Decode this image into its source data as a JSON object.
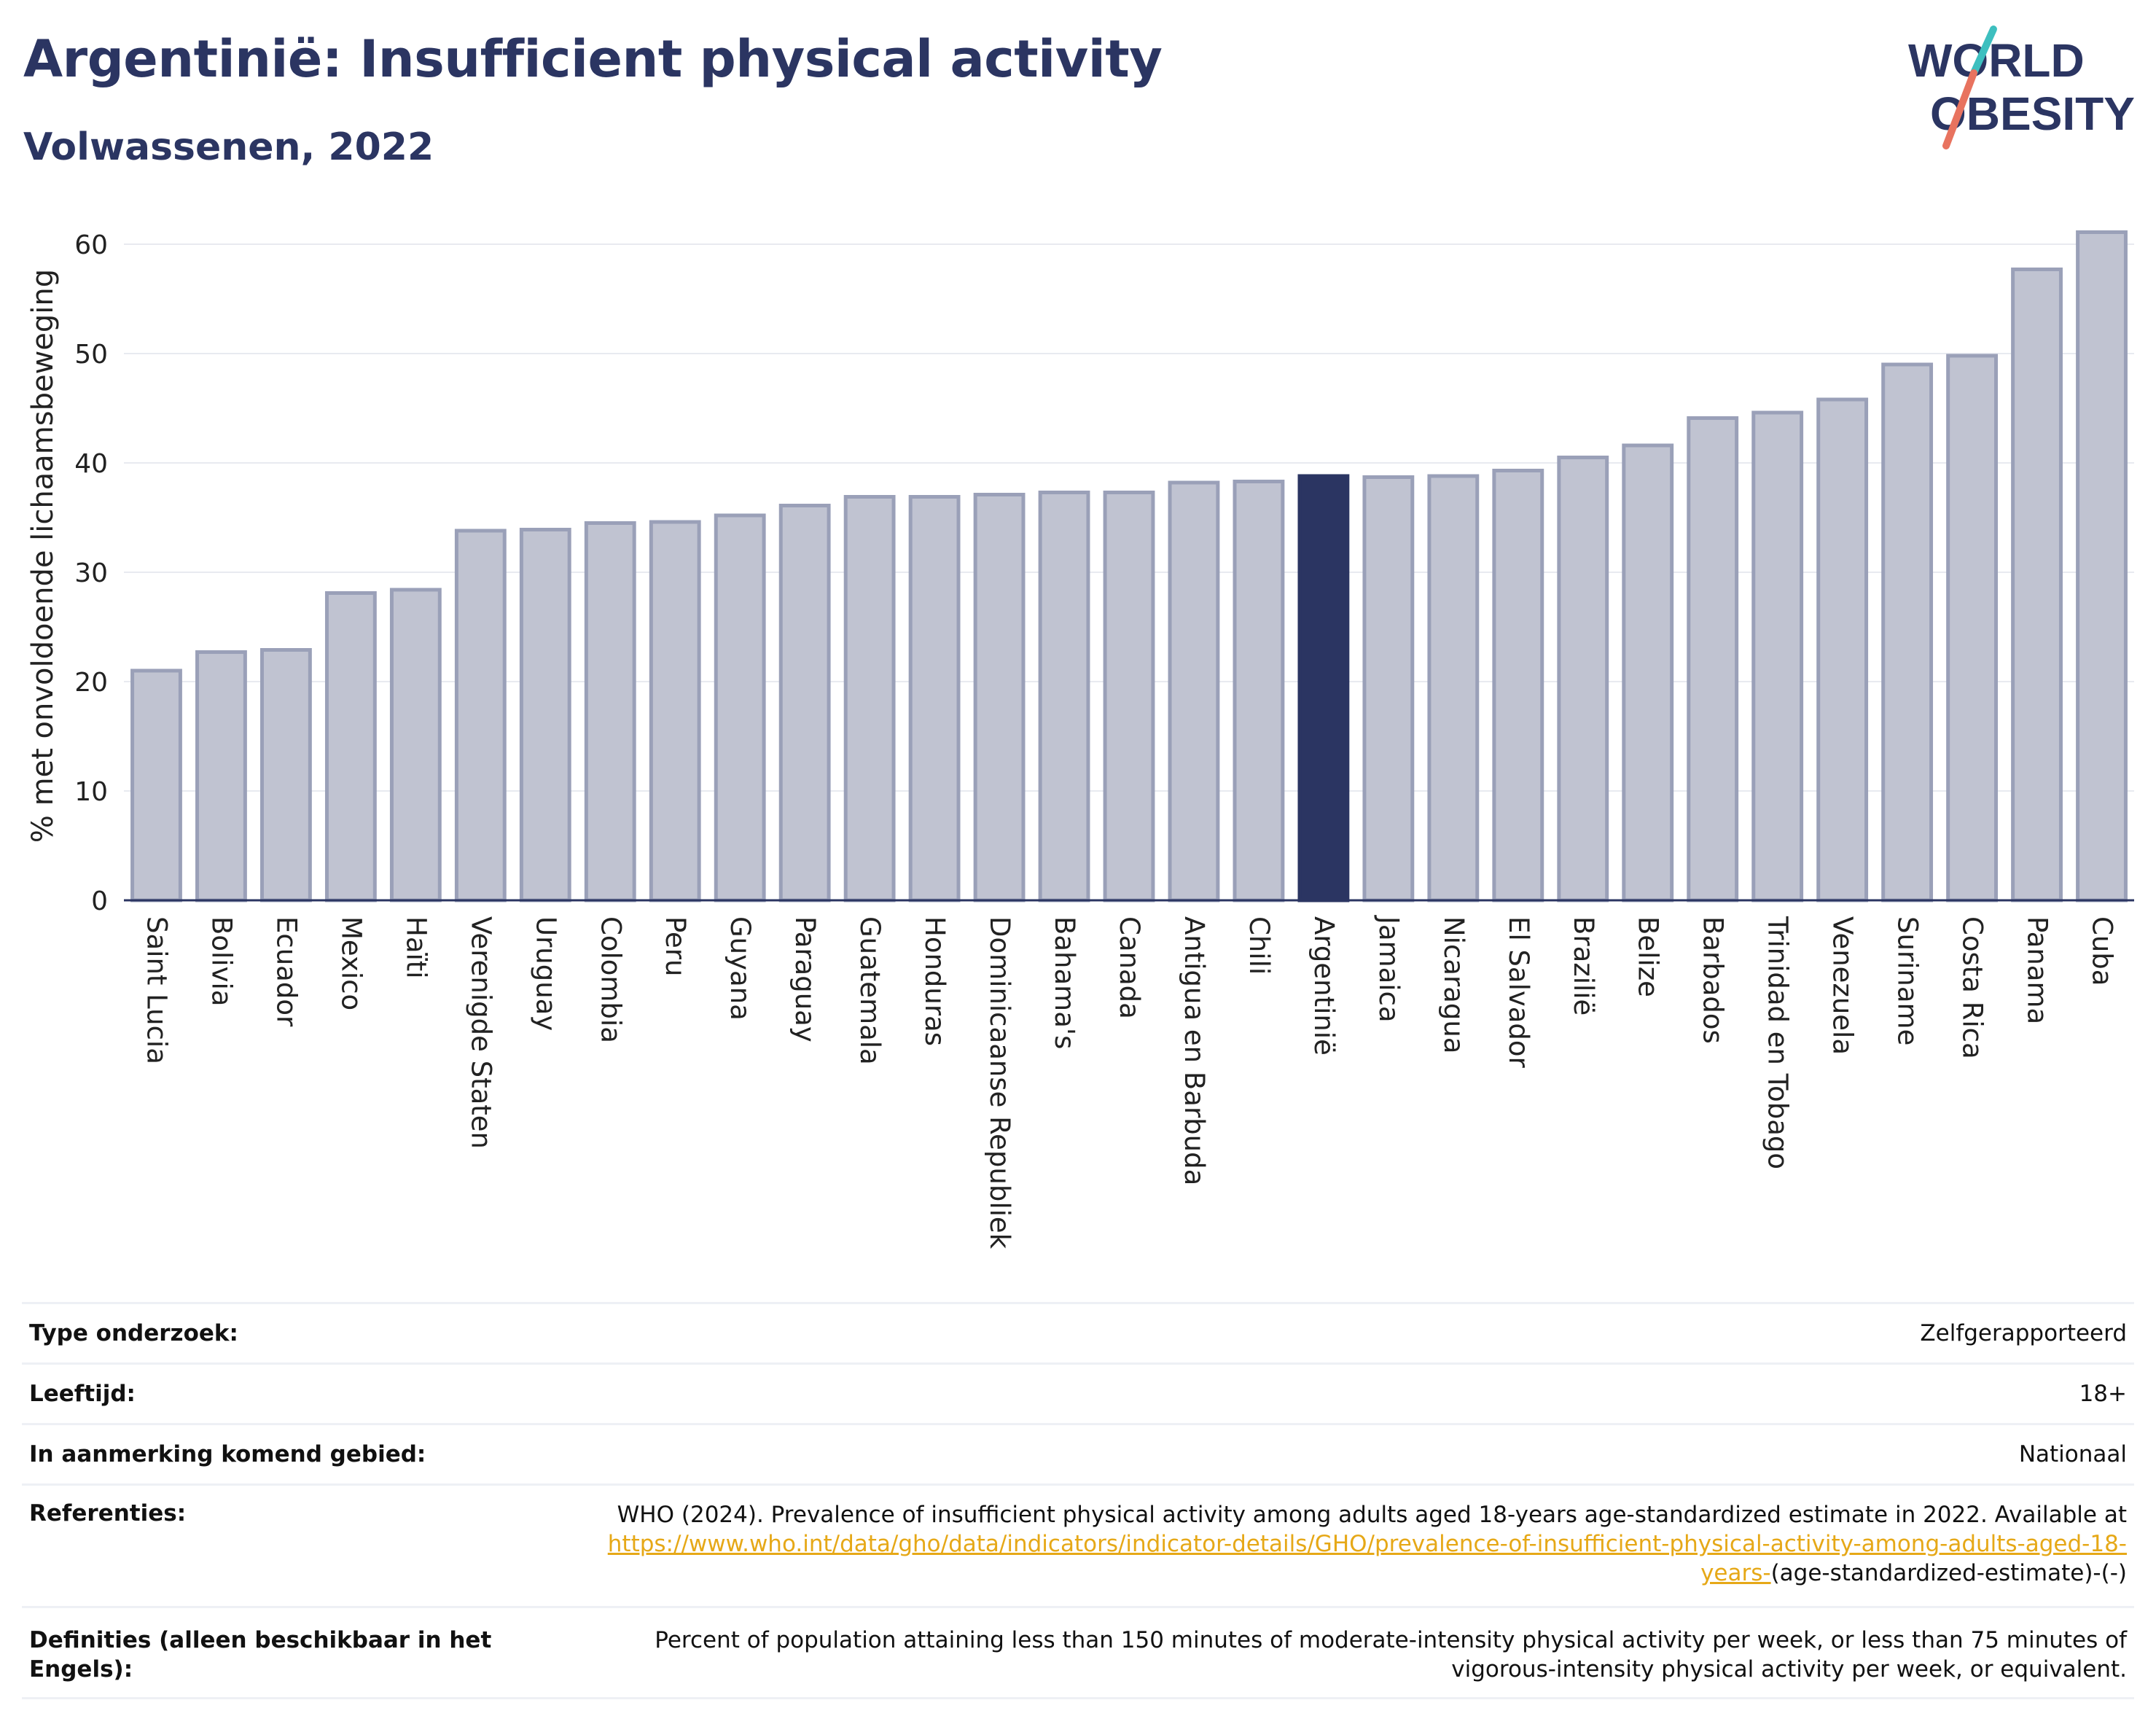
{
  "title": "Argentinië: Insufficient physical activity",
  "subtitle": "Volwassenen, 2022",
  "logo": {
    "line1": "WORLD",
    "line2": "OBESITY",
    "accent_teal": "#3dbfbf",
    "accent_coral": "#e8735f"
  },
  "chart_data": {
    "type": "bar",
    "categories": [
      "Saint Lucia",
      "Bolivia",
      "Ecuador",
      "Mexico",
      "Haïti",
      "Verenigde Staten",
      "Uruguay",
      "Colombia",
      "Peru",
      "Guyana",
      "Paraguay",
      "Guatemala",
      "Honduras",
      "Dominicaanse Republiek",
      "Bahama's",
      "Canada",
      "Antigua en Barbuda",
      "Chili",
      "Argentinië",
      "Jamaica",
      "Nicaragua",
      "El Salvador",
      "Brazilië",
      "Belize",
      "Barbados",
      "Trinidad en Tobago",
      "Venezuela",
      "Suriname",
      "Costa Rica",
      "Panama",
      "Cuba"
    ],
    "values": [
      21.0,
      22.7,
      22.9,
      28.1,
      28.4,
      33.8,
      33.9,
      34.5,
      34.6,
      35.2,
      36.1,
      36.9,
      36.9,
      37.1,
      37.3,
      37.3,
      38.2,
      38.3,
      38.8,
      38.7,
      38.8,
      39.3,
      40.5,
      41.6,
      44.1,
      44.6,
      45.8,
      49.0,
      49.8,
      57.7,
      61.1
    ],
    "highlight": "Argentinië",
    "ylabel": "% met onvoldoende lichaamsbeweging",
    "ylim": [
      0,
      63
    ],
    "yticks": [
      0,
      10,
      20,
      30,
      40,
      50,
      60
    ],
    "grid": true,
    "colors": {
      "bar": "#c0c3d1",
      "bar_edge": "#9aa0b8",
      "highlight": "#2b3562",
      "grid": "#e8eaf0",
      "axis": "#2b3562"
    }
  },
  "meta": [
    {
      "label": "Type onderzoek:",
      "value": "Zelfgerapporteerd"
    },
    {
      "label": "Leeftijd:",
      "value": "18+"
    },
    {
      "label": "In aanmerking komend gebied:",
      "value": "Nationaal"
    },
    {
      "label": "Referenties:",
      "value_prefix": "WHO (2024). Prevalence of insufficient physical activity among adults aged 18-years age-standardized estimate in 2022. Available at",
      "link": "https://www.who.int/data/gho/data/indicators/indicator-details/GHO/prevalence-of-insufficient-physical-activity-among-adults-aged-18-years-",
      "value_suffix": "(age-standardized-estimate)-(-)"
    },
    {
      "label": "Definities (alleen beschikbaar in het Engels):",
      "value": "Percent of population attaining less than 150 minutes of moderate-intensity physical activity per week, or less than 75 minutes of vigorous-intensity physical activity per week, or equivalent."
    }
  ]
}
